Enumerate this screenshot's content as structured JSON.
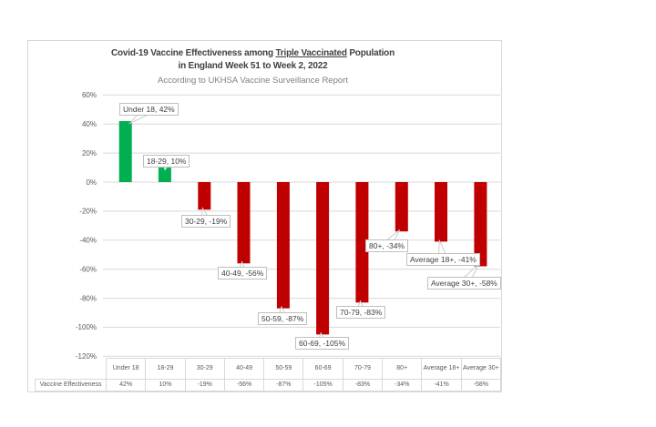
{
  "chart_data": {
    "type": "bar",
    "title": {
      "line1_prefix": "Covid-19 Vaccine Effectiveness among ",
      "line1_underlined": "Triple Vaccinated",
      "line1_suffix": " Population",
      "line2": "in England Week 51 to Week 2, 2022",
      "subtitle": "According to UKHSA Vaccine Surveillance Report"
    },
    "series_name": "Vaccine Effectiveness",
    "categories": [
      "Under 18",
      "18-29",
      "30-29",
      "40-49",
      "50-59",
      "60-69",
      "70-79",
      "80+",
      "Average 18+",
      "Average 30+"
    ],
    "values": [
      42,
      10,
      -19,
      -56,
      -87,
      -105,
      -83,
      -34,
      -41,
      -58
    ],
    "table_values": [
      "42%",
      "10%",
      "-19%",
      "-56%",
      "-87%",
      "-105%",
      "-83%",
      "-34%",
      "-41%",
      "-58%"
    ],
    "data_label_format": "{category}, {value}%",
    "y_ticks": [
      60,
      40,
      20,
      0,
      -20,
      -40,
      -60,
      -80,
      -100,
      -120
    ],
    "ylim": [
      -120,
      60
    ],
    "grid": true,
    "legend": "none",
    "colors": {
      "positive": "#00B050",
      "negative": "#C00000",
      "gridline": "#D9D9D9",
      "axis_text": "#595959",
      "title_text": "#404040",
      "subtitle_text": "#7F7F7F",
      "label_border": "#BFBFBF",
      "label_text": "#404040",
      "table_border": "#D9D9D9",
      "table_text": "#595959"
    }
  }
}
